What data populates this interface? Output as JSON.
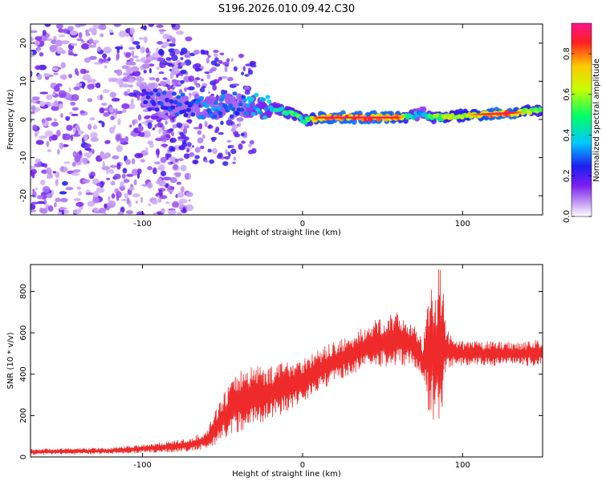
{
  "title": "S196.2026.010.09.42.C30",
  "colors": {
    "spectrogram_core": "#5a1ee6",
    "snr_line": "#ee2a2a",
    "axis": "#000000"
  },
  "chart_data": [
    {
      "type": "heatmap",
      "name": "spectrogram",
      "xlabel": "Height of straight line (km)",
      "ylabel": "Frequency (Hz)",
      "xlim": [
        -170,
        150
      ],
      "ylim": [
        -25,
        25
      ],
      "xticks": [
        -100,
        0,
        100
      ],
      "yticks": [
        -20,
        -10,
        0,
        10,
        20
      ],
      "colorbar": {
        "label": "Normalized spectral amplitude",
        "range": [
          0,
          0.95
        ],
        "ticks": [
          0.0,
          0.2,
          0.4,
          0.6,
          0.8
        ],
        "tick_labels": [
          "0.0",
          "0.2",
          "0.4",
          "0.6",
          "0.8"
        ]
      },
      "ridge": {
        "x": [
          -100,
          -90,
          -80,
          -70,
          -60,
          -50,
          -40,
          -30,
          -20,
          -10,
          -2,
          0,
          10,
          20,
          30,
          40,
          50,
          60,
          70,
          75,
          80,
          90,
          100,
          110,
          120,
          130,
          140,
          150
        ],
        "y": [
          6,
          5,
          4,
          3.5,
          3,
          3.5,
          4,
          3.5,
          3,
          2,
          1,
          -0.5,
          0.5,
          0.5,
          0.5,
          0.5,
          0.5,
          0.5,
          1,
          2,
          0.5,
          0.7,
          1,
          1.3,
          1.5,
          1.7,
          2,
          2.3
        ],
        "amp": [
          0.25,
          0.3,
          0.3,
          0.3,
          0.35,
          0.35,
          0.3,
          0.45,
          0.45,
          0.55,
          0.6,
          0.5,
          0.85,
          0.9,
          0.9,
          0.9,
          0.9,
          0.85,
          0.45,
          0.35,
          0.6,
          0.7,
          0.7,
          0.8,
          0.9,
          0.9,
          0.7,
          0.6
        ]
      }
    },
    {
      "type": "line",
      "name": "snr",
      "xlabel": "Height of straight line (km)",
      "ylabel": "SNR (10 * v/v)",
      "xlim": [
        -170,
        150
      ],
      "ylim": [
        0,
        930
      ],
      "xticks": [
        -100,
        0,
        100
      ],
      "yticks": [
        0,
        200,
        400,
        600,
        800
      ],
      "envelope": {
        "x": [
          -170,
          -120,
          -90,
          -70,
          -60,
          -50,
          -40,
          -30,
          -20,
          -10,
          0,
          10,
          20,
          30,
          40,
          50,
          60,
          70,
          75,
          80,
          85,
          87,
          90,
          95,
          100,
          110,
          120,
          130,
          140,
          150
        ],
        "lo": [
          10,
          15,
          20,
          25,
          35,
          80,
          120,
          150,
          180,
          220,
          260,
          320,
          360,
          400,
          420,
          430,
          440,
          440,
          380,
          150,
          120,
          200,
          420,
          440,
          440,
          440,
          440,
          440,
          440,
          440
        ],
        "hi": [
          40,
          45,
          70,
          90,
          130,
          300,
          420,
          450,
          440,
          470,
          480,
          520,
          560,
          580,
          640,
          680,
          700,
          640,
          560,
          850,
          930,
          880,
          620,
          560,
          560,
          560,
          560,
          560,
          560,
          570
        ]
      }
    }
  ]
}
